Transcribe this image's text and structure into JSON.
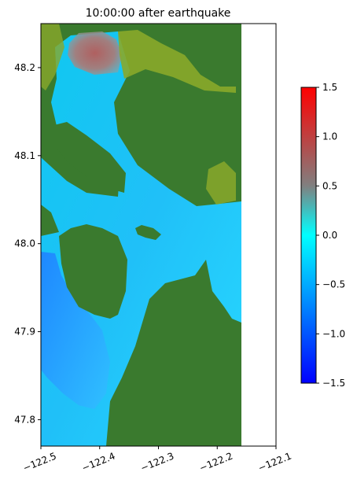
{
  "chart_data": {
    "type": "heatmap",
    "title": "10:00:00 after earthquake",
    "xlabel": "",
    "ylabel": "",
    "xlim": [
      -122.5,
      -122.1
    ],
    "ylim": [
      47.77,
      48.25
    ],
    "xticks": [
      -122.5,
      -122.4,
      -122.3,
      -122.2,
      -122.1
    ],
    "xtick_labels": [
      "−122.5",
      "−122.4",
      "−122.3",
      "−122.2",
      "−122.1"
    ],
    "yticks": [
      47.8,
      47.9,
      48.0,
      48.1,
      48.2
    ],
    "ytick_labels": [
      "47.8",
      "47.9",
      "48.0",
      "48.1",
      "48.2"
    ],
    "data_extent_x": [
      -122.5,
      -122.16
    ],
    "colorbar": {
      "range": [
        -1.5,
        1.5
      ],
      "ticks": [
        -1.5,
        -1.0,
        -0.5,
        0.0,
        0.5,
        1.0,
        1.5
      ],
      "tick_labels": [
        "−1.5",
        "−1.0",
        "−0.5",
        "0.0",
        "0.5",
        "1.0",
        "1.5"
      ],
      "colormap": [
        "#0000ff",
        "#00ffff",
        "#808080",
        "#ff0000"
      ]
    },
    "colors": {
      "land": "#3a7a2e",
      "shore": "#8aa82a",
      "water_blue": "#1e90ff",
      "water_cyan": "#00e5ff",
      "positive_anomaly": "#a06a6a"
    }
  }
}
